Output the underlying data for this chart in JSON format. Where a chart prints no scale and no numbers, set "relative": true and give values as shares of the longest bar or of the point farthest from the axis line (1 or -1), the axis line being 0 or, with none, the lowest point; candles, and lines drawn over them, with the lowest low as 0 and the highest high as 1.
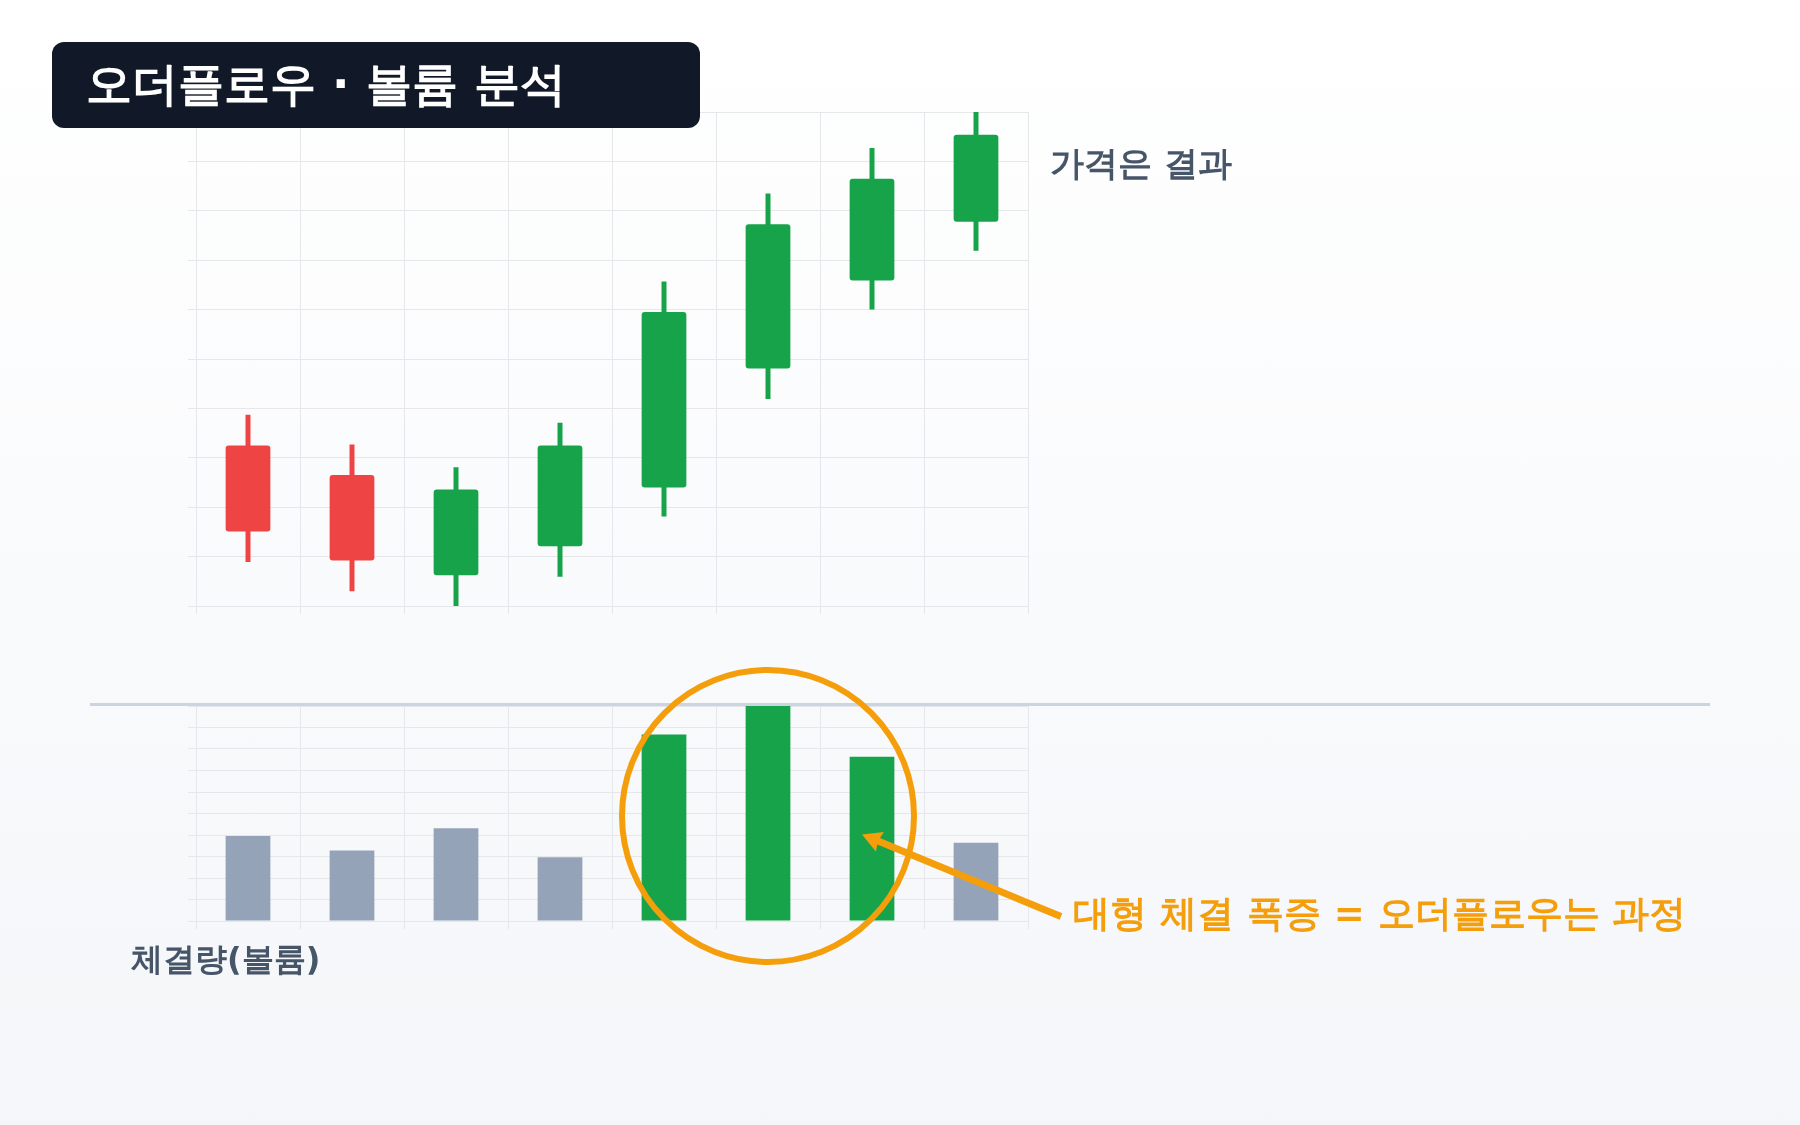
{
  "chart_data": [
    {
      "type": "candlestick",
      "title": "오더플로우 · 볼륨 분석",
      "relative": true,
      "grid": true,
      "tick_labels": false,
      "categories": [
        null,
        null,
        null,
        null,
        null,
        null,
        null,
        null
      ],
      "ohlc": [
        [
          0.325,
          0.387,
          0.089,
          0.151
        ],
        [
          0.265,
          0.327,
          0.03,
          0.092
        ],
        [
          0.062,
          0.281,
          0,
          0.236
        ],
        [
          0.121,
          0.371,
          0.059,
          0.325
        ],
        [
          0.24,
          0.657,
          0.181,
          0.595
        ],
        [
          0.481,
          0.835,
          0.419,
          0.773
        ],
        [
          0.659,
          0.927,
          0.6,
          0.865
        ],
        [
          0.778,
          1,
          0.719,
          0.954
        ]
      ],
      "colors": [
        "#ef4444",
        "#ef4444",
        "#16a34a",
        "#16a34a",
        "#16a34a",
        "#16a34a",
        "#16a34a",
        "#16a34a"
      ],
      "annotations": [
        "가격은 결과"
      ]
    },
    {
      "type": "bar",
      "relative": true,
      "grid": true,
      "tick_labels": false,
      "categories": [
        null,
        null,
        null,
        null,
        null,
        null,
        null,
        null
      ],
      "values": [
        0.395,
        0.328,
        0.431,
        0.297,
        0.867,
        1,
        0.764,
        0.364
      ],
      "colors": [
        "#94a3b8",
        "#94a3b8",
        "#94a3b8",
        "#94a3b8",
        "#16a34a",
        "#16a34a",
        "#16a34a",
        "#94a3b8"
      ],
      "annotations": [
        "체결량(볼륨)",
        "대형 체결 폭증 = 오더플로우는 과정"
      ]
    }
  ]
}
